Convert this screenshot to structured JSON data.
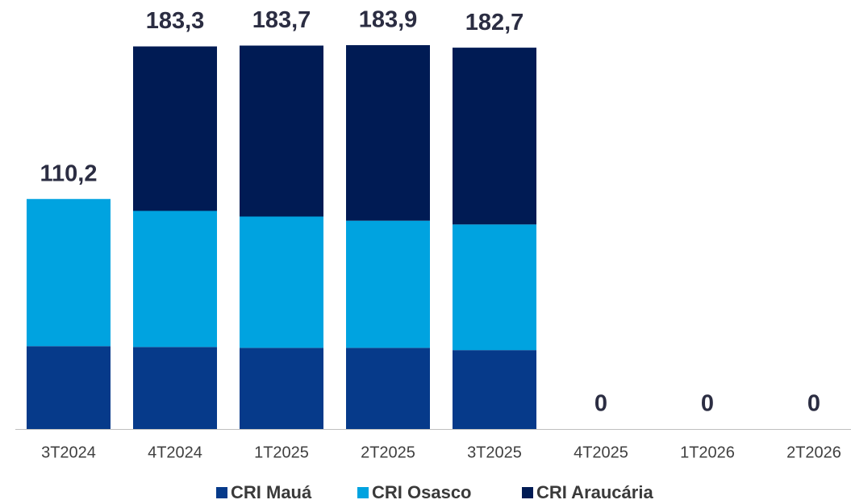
{
  "chart_data": {
    "type": "stacked_bar",
    "categories": [
      "3T2024",
      "4T2024",
      "1T2025",
      "2T2025",
      "3T2025",
      "4T2025",
      "1T2026",
      "2T2026"
    ],
    "series": [
      {
        "name": "CRI Mauá",
        "color": "#063a8a",
        "values": [
          39.7,
          39.3,
          38.9,
          38.9,
          37.8,
          0,
          0,
          0
        ]
      },
      {
        "name": "CRI Osasco",
        "color": "#00a3e0",
        "values": [
          70.5,
          65.2,
          62.9,
          60.9,
          60.2,
          0,
          0,
          0
        ]
      },
      {
        "name": "CRI Araucária",
        "color": "#001b54",
        "values": [
          0,
          78.8,
          81.9,
          84.1,
          84.7,
          0,
          0,
          0
        ]
      }
    ],
    "totals": [
      110.2,
      183.3,
      183.7,
      183.9,
      182.7,
      0,
      0,
      0
    ],
    "total_labels": [
      "110,2",
      "183,3",
      "183,7",
      "183,9",
      "182,7",
      "0",
      "0",
      "0"
    ]
  }
}
